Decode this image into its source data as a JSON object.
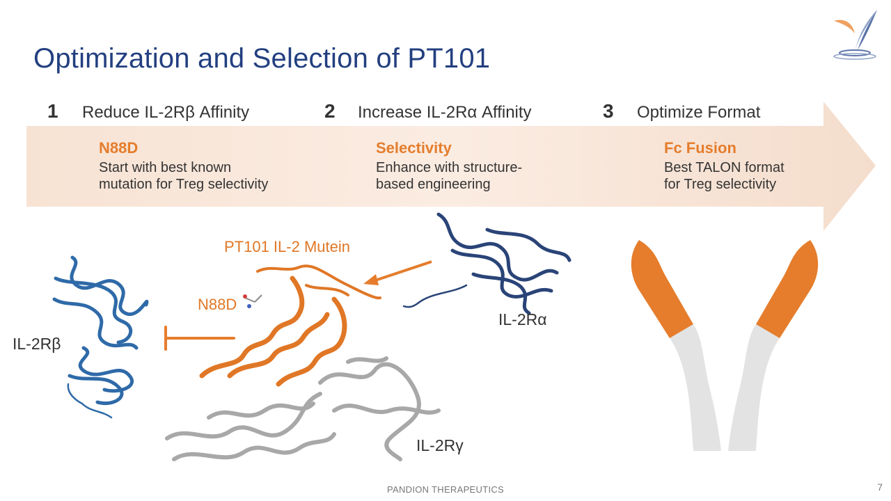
{
  "title": "Optimization and Selection of PT101",
  "steps": [
    {
      "number": "1",
      "heading": "Reduce IL-2Rβ Affinity",
      "subtitle": "N88D",
      "description": "Start with best known mutation for Treg selectivity"
    },
    {
      "number": "2",
      "heading": "Increase IL-2Rα Affinity",
      "subtitle": "Selectivity",
      "description": "Enhance with structure-based engineering"
    },
    {
      "number": "3",
      "heading": "Optimize Format",
      "subtitle": "Fc Fusion",
      "description": "Best TALON format for Treg selectivity"
    }
  ],
  "labels": {
    "il2rb": "IL-2Rβ",
    "il2ra": "IL-2Rα",
    "il2rg": "IL-2Rγ",
    "mutein": "PT101 IL-2 Mutein",
    "n88d": "N88D"
  },
  "footer": "PANDION THERAPEUTICS",
  "page_number": "7",
  "colors": {
    "title": "#233f80",
    "accent": "#e57d2c",
    "arrow_band": "#f6e4d8",
    "rb_blue": "#2f6aa8",
    "ra_navy": "#2a4478",
    "rg_gray": "#a8a8a8"
  },
  "icons": [
    "pandion-bird-logo-icon",
    "antibody-fc-fusion-icon",
    "inhibition-bar-icon"
  ]
}
